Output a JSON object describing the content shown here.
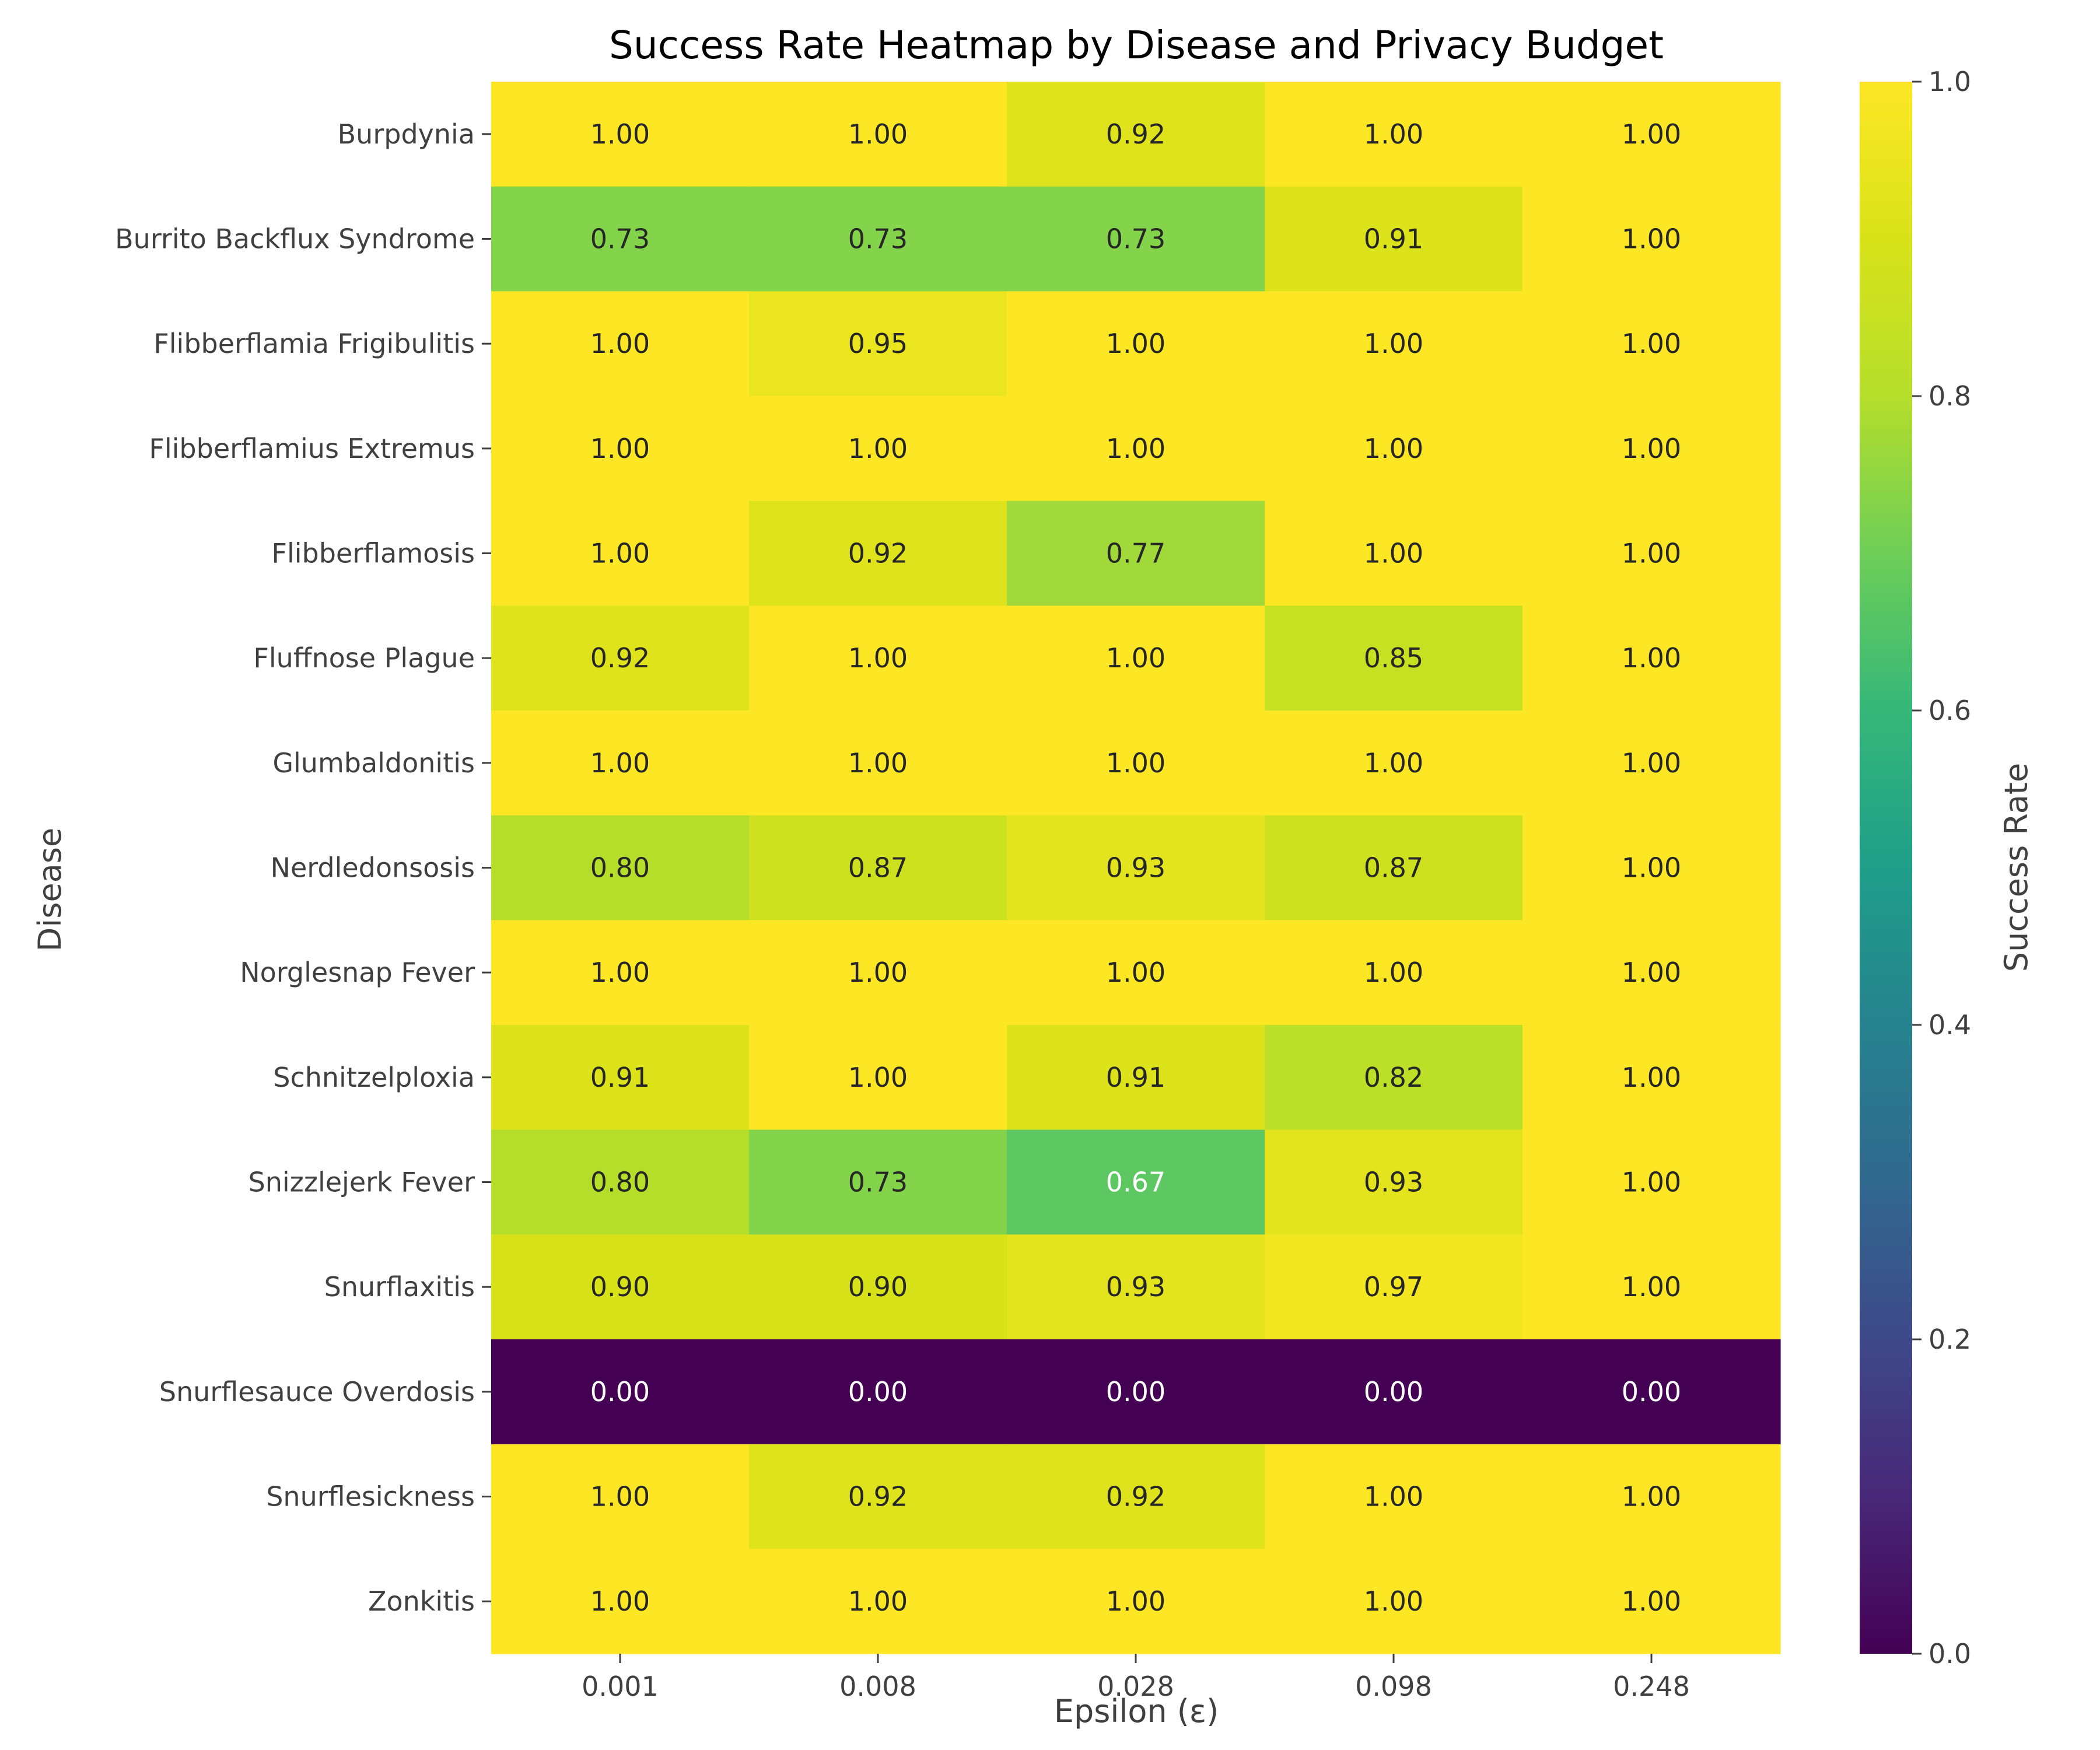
{
  "chart_data": {
    "type": "heatmap",
    "title": "Success Rate Heatmap by Disease and Privacy Budget",
    "xlabel": "Epsilon (ε)",
    "ylabel": "Disease",
    "x": [
      "0.001",
      "0.008",
      "0.028",
      "0.098",
      "0.248"
    ],
    "y": [
      "Burpdynia",
      "Burrito Backflux Syndrome",
      "Flibberflamia Frigibulitis",
      "Flibberflamius Extremus",
      "Flibberflamosis",
      "Fluffnose Plague",
      "Glumbaldonitis",
      "Nerdledonsosis",
      "Norglesnap Fever",
      "Schnitzelploxia",
      "Snizzlejerk Fever",
      "Snurflaxitis",
      "Snurflesauce Overdosis",
      "Snurflesickness",
      "Zonkitis"
    ],
    "values": [
      [
        1.0,
        1.0,
        0.92,
        1.0,
        1.0
      ],
      [
        0.73,
        0.73,
        0.73,
        0.91,
        1.0
      ],
      [
        1.0,
        0.95,
        1.0,
        1.0,
        1.0
      ],
      [
        1.0,
        1.0,
        1.0,
        1.0,
        1.0
      ],
      [
        1.0,
        0.92,
        0.77,
        1.0,
        1.0
      ],
      [
        0.92,
        1.0,
        1.0,
        0.85,
        1.0
      ],
      [
        1.0,
        1.0,
        1.0,
        1.0,
        1.0
      ],
      [
        0.8,
        0.87,
        0.93,
        0.87,
        1.0
      ],
      [
        1.0,
        1.0,
        1.0,
        1.0,
        1.0
      ],
      [
        0.91,
        1.0,
        0.91,
        0.82,
        1.0
      ],
      [
        0.8,
        0.73,
        0.67,
        0.93,
        1.0
      ],
      [
        0.9,
        0.9,
        0.93,
        0.97,
        1.0
      ],
      [
        0.0,
        0.0,
        0.0,
        0.0,
        0.0
      ],
      [
        1.0,
        0.92,
        0.92,
        1.0,
        1.0
      ],
      [
        1.0,
        1.0,
        1.0,
        1.0,
        1.0
      ]
    ],
    "colorbar": {
      "label": "Success Rate",
      "range": [
        0.0,
        1.0
      ],
      "ticks": [
        "0.0",
        "0.2",
        "0.4",
        "0.6",
        "0.8",
        "1.0"
      ],
      "colormap": "viridis"
    }
  }
}
